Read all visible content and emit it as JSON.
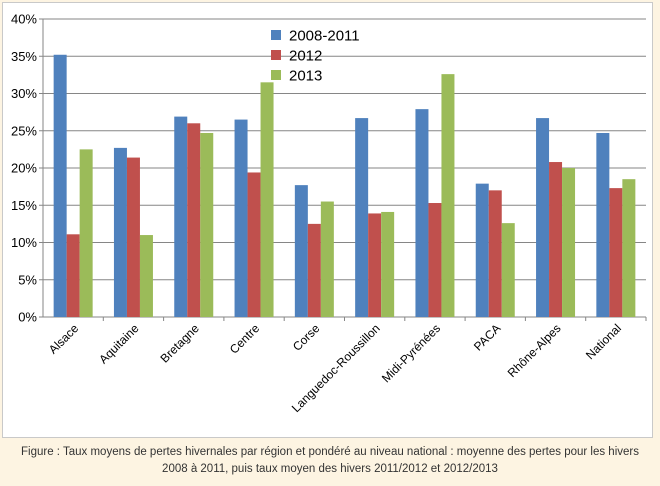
{
  "chart_data": {
    "type": "bar",
    "categories": [
      "Alsace",
      "Aquitaine",
      "Bretagne",
      "Centre",
      "Corse",
      "Languedoc-Roussillon",
      "Midi-Pyrénées",
      "PACA",
      "Rhône-Alpes",
      "National"
    ],
    "series": [
      {
        "name": "2008-2011",
        "color": "#4f81bd",
        "values": [
          35.2,
          22.7,
          26.9,
          26.5,
          17.7,
          26.7,
          27.9,
          17.9,
          26.7,
          24.7
        ]
      },
      {
        "name": "2012",
        "color": "#c0504d",
        "values": [
          11.1,
          21.4,
          26.0,
          19.4,
          12.5,
          13.9,
          15.3,
          17.0,
          20.8,
          17.3
        ]
      },
      {
        "name": "2013",
        "color": "#9bbb59",
        "values": [
          22.5,
          11.0,
          24.7,
          31.5,
          15.5,
          14.1,
          32.6,
          12.6,
          20.0,
          18.5
        ]
      }
    ],
    "ylim": [
      0,
      40
    ],
    "yticks": [
      "0%",
      "5%",
      "10%",
      "15%",
      "20%",
      "25%",
      "30%",
      "35%",
      "40%"
    ],
    "grid": true,
    "legend": "top-center"
  },
  "caption": {
    "line1": "Figure : Taux moyens de pertes hivernales par région et pondéré au niveau national : moyenne des pertes pour les hivers",
    "line2": "2008 à 2011, puis taux moyen des hivers 2011/2012 et 2012/2013"
  }
}
